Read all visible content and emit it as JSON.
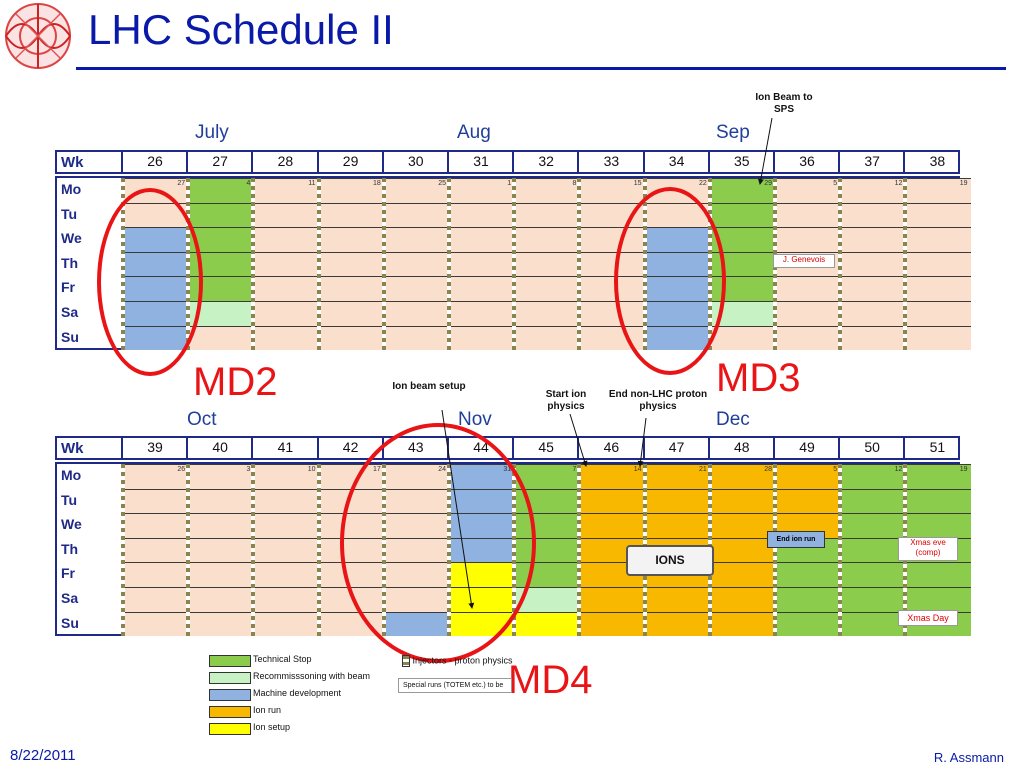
{
  "header": {
    "title": "LHC Schedule II"
  },
  "footer": {
    "date": "8/22/2011",
    "author": "R. Assmann"
  },
  "colors": {
    "empty": "#f9dfcc",
    "technical_stop": "#8bcc4c",
    "recommissioning": "#c6f2c4",
    "md": "#8fb2e0",
    "ion_run": "#f9b800",
    "ion_setup": "#ffff00",
    "highlight_red": "#e81416"
  },
  "calendar": {
    "row_label": "Wk",
    "days": [
      "Mo",
      "Tu",
      "We",
      "Th",
      "Fr",
      "Sa",
      "Su"
    ],
    "top": {
      "months": [
        "July",
        "Aug",
        "Sep"
      ],
      "weeks": [
        "26",
        "27",
        "28",
        "29",
        "30",
        "31",
        "32",
        "33",
        "34",
        "35",
        "36",
        "37",
        "38"
      ],
      "monday_dates": [
        "27",
        "4",
        "11",
        "18",
        "25",
        "1",
        "8",
        "15",
        "22",
        "29",
        "5",
        "12",
        "19"
      ],
      "cells": [
        [
          "E",
          "E",
          "M",
          "M",
          "M",
          "M",
          "M"
        ],
        [
          "T",
          "T",
          "T",
          "T",
          "T",
          "R",
          "E"
        ],
        [
          "E",
          "E",
          "E",
          "E",
          "E",
          "E",
          "E"
        ],
        [
          "E",
          "E",
          "E",
          "E",
          "E",
          "E",
          "E"
        ],
        [
          "E",
          "E",
          "E",
          "E",
          "E",
          "E",
          "E"
        ],
        [
          "E",
          "E",
          "E",
          "E",
          "E",
          "E",
          "E"
        ],
        [
          "E",
          "E",
          "E",
          "E",
          "E",
          "E",
          "E"
        ],
        [
          "E",
          "E",
          "E",
          "E",
          "E",
          "E",
          "E"
        ],
        [
          "E",
          "E",
          "M",
          "M",
          "M",
          "M",
          "M"
        ],
        [
          "T",
          "T",
          "T",
          "T",
          "T",
          "R",
          "E"
        ],
        [
          "E",
          "E",
          "E",
          "E",
          "E",
          "E",
          "E"
        ],
        [
          "E",
          "E",
          "E",
          "E",
          "E",
          "E",
          "E"
        ],
        [
          "E",
          "E",
          "E",
          "E",
          "E",
          "E",
          "E"
        ]
      ],
      "annotation_ion_beam_sps": "Ion Beam to SPS",
      "label_genevois": "J. Genevois"
    },
    "bottom": {
      "months": [
        "Oct",
        "Nov",
        "Dec"
      ],
      "weeks": [
        "39",
        "40",
        "41",
        "42",
        "43",
        "44",
        "45",
        "46",
        "47",
        "48",
        "49",
        "50",
        "51"
      ],
      "monday_dates": [
        "26",
        "3",
        "10",
        "17",
        "24",
        "31",
        "7",
        "14",
        "21",
        "28",
        "5",
        "12",
        "19"
      ],
      "cells": [
        [
          "E",
          "E",
          "E",
          "E",
          "E",
          "E",
          "E"
        ],
        [
          "E",
          "E",
          "E",
          "E",
          "E",
          "E",
          "E"
        ],
        [
          "E",
          "E",
          "E",
          "E",
          "E",
          "E",
          "E"
        ],
        [
          "E",
          "E",
          "E",
          "E",
          "E",
          "E",
          "E"
        ],
        [
          "E",
          "E",
          "E",
          "E",
          "E",
          "E",
          "M"
        ],
        [
          "M",
          "M",
          "M",
          "M",
          "S",
          "S",
          "S"
        ],
        [
          "T",
          "T",
          "T",
          "T",
          "T",
          "R",
          "S"
        ],
        [
          "I",
          "I",
          "I",
          "I",
          "I",
          "I",
          "I"
        ],
        [
          "I",
          "I",
          "I",
          "I",
          "I",
          "I",
          "I"
        ],
        [
          "I",
          "I",
          "I",
          "I",
          "I",
          "I",
          "I"
        ],
        [
          "I",
          "I",
          "I",
          "T",
          "T",
          "T",
          "T"
        ],
        [
          "T",
          "T",
          "T",
          "T",
          "T",
          "T",
          "T"
        ],
        [
          "T",
          "T",
          "T",
          "T",
          "T",
          "T",
          "T"
        ]
      ],
      "annotation_ion_setup": "Ion beam setup",
      "annotation_start_ion": "Start ion physics",
      "annotation_end_non_lhc": "End non-LHC proton physics",
      "label_ions": "IONS",
      "label_end_ion_run": "End ion run",
      "label_xmas_eve": "Xmas eve (comp)",
      "label_xmas_day": "Xmas Day"
    }
  },
  "md_labels": [
    "MD2",
    "MD3",
    "MD4"
  ],
  "legend": {
    "items": [
      {
        "label": "Technical Stop",
        "color": "#8bcc4c"
      },
      {
        "label": "Recommisssoning with beam",
        "color": "#c6f2c4"
      },
      {
        "label": "Machine development",
        "color": "#8fb2e0"
      },
      {
        "label": "Ion run",
        "color": "#f9b800"
      },
      {
        "label": "Ion setup",
        "color": "#ffff00"
      }
    ],
    "injectors": "Injectors - proton physics",
    "special_runs": "Special runs (TOTEM etc.) to be"
  }
}
